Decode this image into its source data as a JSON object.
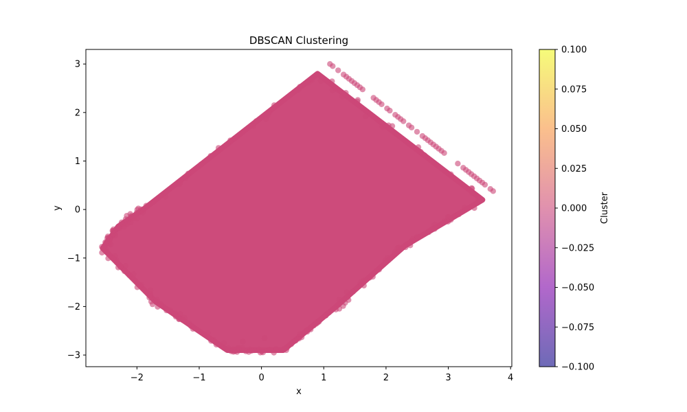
{
  "chart_data": {
    "type": "scatter",
    "title": "DBSCAN Clustering",
    "xlabel": "x",
    "ylabel": "y",
    "xlim": [
      -2.82,
      4.02
    ],
    "ylim": [
      -3.24,
      3.3
    ],
    "xticks": [
      -2,
      -1,
      0,
      1,
      2,
      3,
      4
    ],
    "yticks": [
      -3,
      -2,
      -1,
      0,
      1,
      2,
      3
    ],
    "grid": false,
    "point_color": "#cc4778",
    "point_alpha": 0.6,
    "series": [
      {
        "cluster": 0,
        "region_vertices": [
          [
            -2.55,
            -0.8
          ],
          [
            -2.3,
            -0.35
          ],
          [
            -1.9,
            0.0
          ],
          [
            0.9,
            2.8
          ],
          [
            3.55,
            0.2
          ],
          [
            2.3,
            -0.75
          ],
          [
            1.2,
            -2.0
          ],
          [
            0.35,
            -2.9
          ],
          [
            -0.55,
            -2.9
          ],
          [
            -1.7,
            -1.9
          ]
        ],
        "band": {
          "from": [
            1.1,
            3.0
          ],
          "to": [
            3.72,
            0.38
          ]
        },
        "outliers": [
          [
            -2.55,
            -0.8
          ],
          [
            -2.42,
            -0.72
          ],
          [
            -2.38,
            -1.0
          ],
          [
            -0.45,
            -2.88
          ],
          [
            -0.12,
            -2.9
          ],
          [
            0.2,
            -2.95
          ],
          [
            0.35,
            -2.88
          ],
          [
            -0.6,
            -2.75
          ],
          [
            0.05,
            -2.65
          ],
          [
            -0.3,
            -2.72
          ],
          [
            0.55,
            -2.7
          ]
        ]
      }
    ],
    "colorbar": {
      "label": "Cluster",
      "min": -0.1,
      "max": 0.1,
      "ticks": [
        "0.100",
        "0.075",
        "0.050",
        "0.025",
        "0.000",
        "−0.025",
        "−0.050",
        "−0.075",
        "−0.100"
      ],
      "colors": [
        "#0d0887",
        "#7e03a8",
        "#cc4778",
        "#f89540",
        "#f0f921"
      ]
    }
  }
}
